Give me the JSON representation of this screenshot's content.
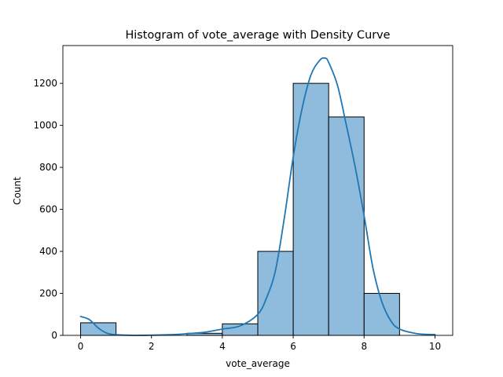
{
  "chart_data": {
    "type": "bar",
    "title": "Histogram of vote_average with Density Curve",
    "xlabel": "vote_average",
    "ylabel": "Count",
    "bins": [
      {
        "x0": 0,
        "x1": 1,
        "count": 60
      },
      {
        "x0": 1,
        "x1": 2,
        "count": 0
      },
      {
        "x0": 2,
        "x1": 3,
        "count": 0
      },
      {
        "x0": 3,
        "x1": 4,
        "count": 10
      },
      {
        "x0": 4,
        "x1": 5,
        "count": 55
      },
      {
        "x0": 5,
        "x1": 6,
        "count": 400
      },
      {
        "x0": 6,
        "x1": 7,
        "count": 1200
      },
      {
        "x0": 7,
        "x1": 8,
        "count": 1040
      },
      {
        "x0": 8,
        "x1": 9,
        "count": 200
      },
      {
        "x0": 9,
        "x1": 10,
        "count": 0
      }
    ],
    "density_curve": {
      "x": [
        0,
        0.25,
        0.5,
        0.75,
        1,
        1.5,
        2,
        2.5,
        3,
        3.5,
        4,
        4.5,
        5,
        5.25,
        5.5,
        5.75,
        6,
        6.25,
        6.5,
        6.75,
        6.9,
        7,
        7.25,
        7.5,
        7.75,
        8,
        8.25,
        8.5,
        8.75,
        9,
        9.5,
        10
      ],
      "y": [
        90,
        75,
        35,
        10,
        3,
        0,
        1,
        3,
        8,
        15,
        30,
        45,
        100,
        180,
        310,
        560,
        850,
        1080,
        1240,
        1310,
        1320,
        1300,
        1190,
        1000,
        800,
        570,
        320,
        160,
        70,
        30,
        8,
        4
      ]
    },
    "xlim": [
      -0.5,
      10.5
    ],
    "ylim": [
      0,
      1380
    ],
    "xticks": [
      0,
      2,
      4,
      6,
      8,
      10
    ],
    "yticks": [
      0,
      200,
      400,
      600,
      800,
      1000,
      1200
    ],
    "grid": false,
    "colors": {
      "bar_fill": "#8fbbdc",
      "bar_edge": "#000000",
      "curve": "#1f77b4"
    }
  }
}
